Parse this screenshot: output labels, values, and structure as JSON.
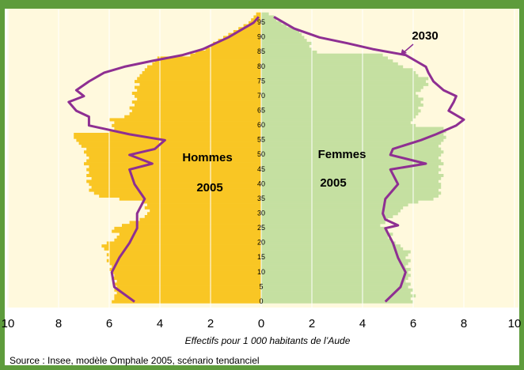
{
  "chart_data": {
    "type": "pyramid",
    "xlabel": "Effectifs pour 1 000 habitants de l’Aude",
    "source": "Source : Insee, modèle Omphale 2005, scénario tendanciel",
    "xlim": [
      -10,
      10
    ],
    "xticks": [
      {
        "value": -10,
        "label": "10"
      },
      {
        "value": -8,
        "label": "8"
      },
      {
        "value": -6,
        "label": "6"
      },
      {
        "value": -4,
        "label": "4"
      },
      {
        "value": -2,
        "label": "2"
      },
      0,
      2,
      4,
      6,
      8,
      10
    ],
    "ylim": [
      -2,
      99.5
    ],
    "yticks": [
      0,
      5,
      10,
      15,
      20,
      25,
      30,
      35,
      40,
      45,
      50,
      55,
      60,
      65,
      70,
      75,
      80,
      85,
      90,
      95
    ],
    "grid": true,
    "ages": [
      0,
      1,
      2,
      3,
      4,
      5,
      6,
      7,
      8,
      9,
      10,
      11,
      12,
      13,
      14,
      15,
      16,
      17,
      18,
      19,
      20,
      21,
      22,
      23,
      24,
      25,
      26,
      27,
      28,
      29,
      30,
      31,
      32,
      33,
      34,
      35,
      36,
      37,
      38,
      39,
      40,
      41,
      42,
      43,
      44,
      45,
      46,
      47,
      48,
      49,
      50,
      51,
      52,
      53,
      54,
      55,
      56,
      57,
      58,
      59,
      60,
      61,
      62,
      63,
      64,
      65,
      66,
      67,
      68,
      69,
      70,
      71,
      72,
      73,
      74,
      75,
      76,
      77,
      78,
      79,
      80,
      81,
      82,
      83,
      84,
      85,
      86,
      87,
      88,
      89,
      90,
      91,
      92,
      93,
      94,
      95,
      96,
      97,
      98
    ],
    "series": [
      {
        "name": "Hommes",
        "year": "2005",
        "side": "left",
        "color": "#f9c624",
        "values": [
          5.9,
          5.8,
          5.8,
          5.7,
          5.8,
          5.7,
          5.8,
          5.7,
          5.9,
          5.8,
          5.9,
          6.0,
          5.9,
          6.0,
          6.1,
          6.0,
          6.1,
          6.0,
          6.2,
          6.3,
          6.1,
          5.8,
          5.7,
          5.6,
          5.9,
          5.8,
          5.5,
          5.2,
          4.8,
          4.6,
          4.5,
          4.4,
          4.6,
          4.5,
          4.7,
          5.6,
          6.4,
          6.6,
          6.8,
          6.7,
          6.8,
          6.9,
          6.7,
          6.9,
          6.8,
          6.9,
          6.8,
          7.0,
          6.9,
          6.8,
          6.9,
          7.0,
          6.9,
          7.1,
          7.2,
          7.3,
          7.4,
          7.4,
          6.0,
          5.8,
          5.9,
          5.8,
          6.0,
          5.4,
          5.2,
          5.1,
          5.2,
          5.0,
          5.1,
          4.9,
          5.0,
          5.1,
          4.9,
          5.0,
          4.8,
          5.0,
          4.9,
          4.8,
          4.7,
          4.6,
          4.5,
          4.3,
          4.2,
          4.1,
          2.8,
          2.6,
          2.2,
          2.0,
          1.9,
          1.7,
          1.5,
          1.3,
          1.1,
          0.9,
          0.7,
          0.5,
          0.4,
          0.3,
          0.2
        ]
      },
      {
        "name": "Femmes",
        "year": "2005",
        "side": "right",
        "color": "#c5e0a1",
        "values": [
          6.0,
          5.9,
          6.1,
          5.9,
          6.0,
          5.8,
          5.9,
          5.7,
          5.8,
          5.9,
          5.8,
          5.9,
          5.7,
          5.8,
          5.9,
          5.7,
          5.8,
          5.9,
          5.6,
          5.5,
          5.3,
          5.1,
          5.0,
          5.2,
          5.0,
          4.9,
          4.7,
          4.9,
          5.0,
          5.2,
          5.4,
          5.5,
          5.6,
          5.8,
          6.2,
          6.8,
          7.0,
          7.1,
          7.0,
          7.1,
          7.1,
          7.0,
          7.1,
          7.2,
          7.0,
          7.1,
          7.0,
          7.2,
          7.1,
          7.0,
          7.1,
          7.2,
          7.1,
          7.0,
          7.1,
          7.2,
          7.3,
          7.2,
          7.3,
          7.2,
          6.1,
          5.9,
          6.0,
          6.1,
          6.2,
          6.3,
          6.2,
          6.4,
          6.3,
          6.4,
          6.2,
          6.1,
          6.3,
          6.4,
          6.6,
          6.5,
          6.6,
          6.2,
          6.1,
          6.0,
          5.6,
          5.4,
          5.2,
          5.0,
          4.8,
          2.2,
          2.0,
          1.9,
          2.0,
          1.8,
          1.7,
          1.6,
          1.5,
          1.3,
          1.0,
          0.8,
          0.6,
          0.5,
          0.3
        ]
      }
    ],
    "projection": {
      "name": "2030",
      "color": "#8e2f92",
      "ages": [
        0,
        5,
        10,
        15,
        20,
        25,
        26,
        28,
        30,
        35,
        40,
        45,
        47,
        50,
        52,
        55,
        57,
        60,
        62,
        63,
        65,
        68,
        70,
        72,
        75,
        78,
        80,
        82,
        84,
        86,
        88,
        90,
        93,
        95,
        97
      ],
      "hommes": [
        5.0,
        5.8,
        5.9,
        5.6,
        5.2,
        4.9,
        4.9,
        4.9,
        4.9,
        4.6,
        5.0,
        5.2,
        4.3,
        5.2,
        4.2,
        3.8,
        5.2,
        6.8,
        6.8,
        6.8,
        7.3,
        7.6,
        7.0,
        7.3,
        6.8,
        6.2,
        5.4,
        4.3,
        3.1,
        2.3,
        1.8,
        1.3,
        0.7,
        0.3,
        0.1
      ],
      "femmes": [
        4.9,
        5.5,
        5.7,
        5.4,
        5.2,
        4.9,
        5.4,
        4.9,
        4.8,
        4.9,
        5.4,
        5.1,
        6.5,
        5.1,
        5.2,
        6.3,
        6.9,
        7.7,
        8.0,
        7.8,
        7.4,
        7.6,
        7.7,
        7.2,
        6.8,
        6.6,
        6.5,
        6.1,
        5.7,
        4.4,
        3.4,
        2.3,
        1.3,
        0.9,
        0.5
      ]
    }
  }
}
